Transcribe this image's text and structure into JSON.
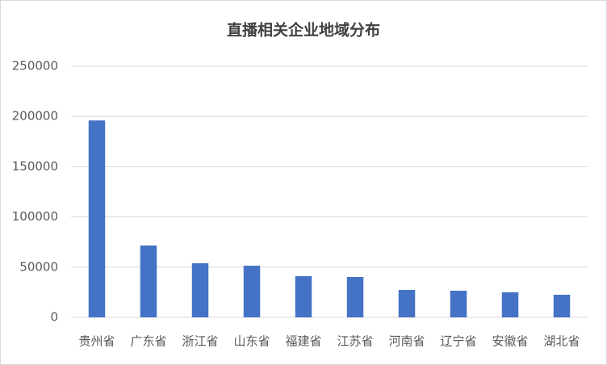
{
  "chart_data": {
    "type": "bar",
    "title": "直播相关企业地域分布",
    "categories": [
      "贵州省",
      "广东省",
      "浙江省",
      "山东省",
      "福建省",
      "江苏省",
      "河南省",
      "辽宁省",
      "安徽省",
      "湖北省"
    ],
    "values": [
      196000,
      71500,
      53900,
      51400,
      41000,
      40200,
      27300,
      26500,
      24900,
      22500
    ],
    "color": "#4472c4",
    "ylim": [
      0,
      250000
    ],
    "yticks": [
      0,
      50000,
      100000,
      150000,
      200000,
      250000
    ],
    "grid": true
  }
}
